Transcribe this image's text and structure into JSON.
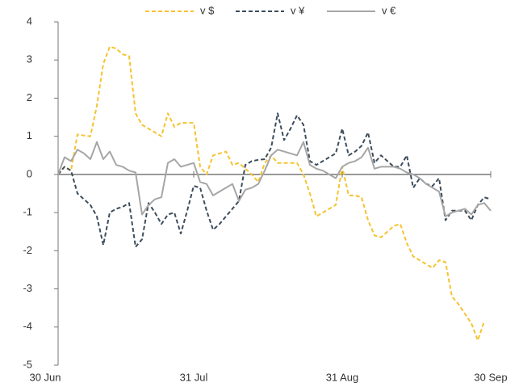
{
  "chart_data": {
    "type": "line",
    "categories": [
      "30 Jun",
      null,
      null,
      null,
      null,
      null,
      null,
      null,
      null,
      null,
      null,
      null,
      null,
      null,
      null,
      null,
      null,
      null,
      null,
      null,
      null,
      "31 Jul",
      null,
      null,
      null,
      null,
      null,
      null,
      null,
      null,
      null,
      null,
      null,
      null,
      null,
      null,
      null,
      null,
      null,
      null,
      null,
      null,
      null,
      null,
      "31 Aug",
      null,
      null,
      null,
      null,
      null,
      null,
      null,
      null,
      null,
      null,
      null,
      null,
      null,
      null,
      null,
      null,
      null,
      null,
      null,
      null,
      null,
      null,
      "30 Sep"
    ],
    "series": [
      {
        "name": "v $",
        "color": "#f5c330",
        "style": "dashed",
        "values": [
          0,
          0.2,
          0.1,
          1.05,
          1.02,
          1.0,
          1.8,
          2.9,
          3.35,
          3.3,
          3.15,
          3.1,
          1.6,
          1.3,
          1.2,
          1.1,
          1.0,
          1.6,
          1.25,
          1.35,
          1.35,
          1.35,
          0.2,
          0.0,
          0.5,
          0.55,
          0.6,
          0.25,
          0.3,
          0.15,
          0.0,
          -0.2,
          0.3,
          0.5,
          0.3,
          0.3,
          0.3,
          0.3,
          0.0,
          -0.5,
          -1.1,
          -1.0,
          -0.9,
          -0.8,
          0.2,
          -0.55,
          -0.55,
          -0.6,
          -1.2,
          -1.6,
          -1.65,
          -1.5,
          -1.35,
          -1.3,
          -1.8,
          -2.15,
          -2.25,
          -2.35,
          -2.45,
          -2.25,
          -2.3,
          -3.2,
          -3.4,
          -3.65,
          -3.9,
          -4.35,
          -3.85,
          null
        ]
      },
      {
        "name": "v ¥",
        "color": "#3d4d5c",
        "style": "dashed",
        "values": [
          0,
          0.2,
          0.1,
          -0.5,
          -0.65,
          -0.8,
          -1.1,
          -1.85,
          -1.0,
          -0.9,
          -0.85,
          -0.75,
          -1.9,
          -1.7,
          -0.75,
          -1.0,
          -1.3,
          -1.05,
          -1.0,
          -1.55,
          -0.95,
          -0.3,
          -0.35,
          -0.95,
          -1.45,
          -1.3,
          -1.1,
          -0.9,
          -0.7,
          0.25,
          0.35,
          0.38,
          0.4,
          0.7,
          1.6,
          0.9,
          1.2,
          1.55,
          1.3,
          0.35,
          0.25,
          0.35,
          0.45,
          0.55,
          1.2,
          0.5,
          0.6,
          0.75,
          1.1,
          0.3,
          0.5,
          0.35,
          0.2,
          0.2,
          0.5,
          -0.35,
          -0.1,
          -0.25,
          -0.3,
          -0.1,
          -1.2,
          -0.95,
          -0.95,
          -0.95,
          -1.2,
          -0.8,
          -0.6,
          -0.65
        ]
      },
      {
        "name": "v €",
        "color": "#a6a6a6",
        "style": "solid",
        "values": [
          0,
          0.45,
          0.35,
          0.65,
          0.55,
          0.4,
          0.85,
          0.4,
          0.6,
          0.25,
          0.2,
          0.1,
          0.05,
          -1.05,
          -0.8,
          -0.65,
          -0.6,
          0.3,
          0.4,
          0.2,
          0.25,
          0.3,
          -0.2,
          -0.25,
          -0.55,
          -0.45,
          -0.35,
          -0.25,
          -0.7,
          -0.4,
          -0.35,
          -0.25,
          0.1,
          0.5,
          0.65,
          0.6,
          0.55,
          0.5,
          0.85,
          0.25,
          0.15,
          0.1,
          0.0,
          -0.1,
          0.2,
          0.3,
          0.35,
          0.45,
          0.7,
          0.15,
          0.2,
          0.2,
          0.2,
          0.15,
          0.05,
          0.0,
          -0.1,
          -0.25,
          -0.35,
          -0.45,
          -1.1,
          -1.0,
          -0.95,
          -0.9,
          -1.05,
          -0.8,
          -0.75,
          -0.95
        ]
      }
    ],
    "ylim": [
      -5,
      4
    ],
    "yticks": [
      -5,
      -4,
      -3,
      -2,
      -1,
      0,
      1,
      2,
      3,
      4
    ],
    "legend": "top"
  }
}
